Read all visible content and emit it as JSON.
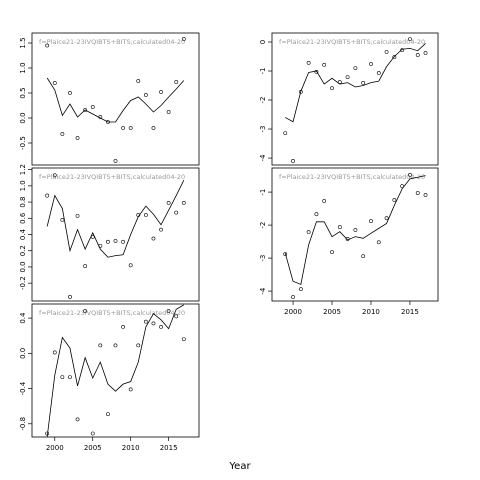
{
  "x_label": "Year",
  "chart_data": [
    {
      "type": "scatter",
      "title": "f=Plaice21-23IVQIBTS+BITS;calculated04-20",
      "x": [
        1999,
        2000,
        2001,
        2002,
        2003,
        2004,
        2005,
        2006,
        2007,
        2008,
        2009,
        2010,
        2011,
        2012,
        2013,
        2014,
        2015,
        2016,
        2017
      ],
      "xlim": [
        1997,
        2019
      ],
      "ylim": [
        -0.94,
        1.7
      ],
      "yticks": [
        -0.5,
        {
          "value": 0,
          "label": "0.0"
        },
        0.5,
        {
          "value": 1,
          "label": "1.0"
        },
        1.5
      ],
      "series": [
        {
          "style": "points",
          "color": "#000000",
          "values": [
            1.45,
            0.7,
            -0.32,
            0.5,
            -0.4,
            0.16,
            0.22,
            0.02,
            -0.08,
            -0.86,
            -0.2,
            -0.2,
            0.74,
            0.46,
            -0.2,
            0.52,
            0.12,
            0.72,
            1.58
          ]
        },
        {
          "style": "line",
          "color": "#000000",
          "values": [
            0.8,
            0.56,
            0.05,
            0.28,
            0.02,
            0.16,
            0.08,
            0.0,
            -0.08,
            -0.08,
            0.15,
            0.35,
            0.42,
            0.28,
            0.12,
            0.25,
            0.42,
            0.58,
            0.75
          ]
        }
      ]
    },
    {
      "type": "scatter",
      "title": "f=Plaice21-23IVQIBTS+BITS;calculated04-20",
      "x": [
        1999,
        2000,
        2001,
        2002,
        2003,
        2004,
        2005,
        2006,
        2007,
        2008,
        2009,
        2010,
        2011,
        2012,
        2013,
        2014,
        2015,
        2016,
        2017
      ],
      "xlim": [
        1997,
        2019
      ],
      "ylim": [
        -0.42,
        1.22
      ],
      "yticks": [
        -0.2,
        {
          "value": 0,
          "label": "0.0"
        },
        0.2,
        0.4,
        0.6,
        0.8,
        {
          "value": 1,
          "label": "1.0"
        },
        1.2
      ],
      "series": [
        {
          "style": "points",
          "color": "#000000",
          "values": [
            0.88,
            1.13,
            0.58,
            -0.37,
            0.63,
            0.01,
            0.37,
            0.26,
            0.31,
            0.32,
            0.31,
            0.02,
            0.64,
            0.64,
            0.35,
            0.46,
            0.79,
            0.67,
            0.79
          ]
        },
        {
          "style": "line",
          "color": "#000000",
          "values": [
            0.5,
            0.88,
            0.72,
            0.2,
            0.46,
            0.22,
            0.42,
            0.22,
            0.12,
            0.14,
            0.15,
            0.4,
            0.62,
            0.75,
            0.65,
            0.52,
            0.7,
            0.88,
            1.07
          ]
        }
      ]
    },
    {
      "type": "scatter",
      "title": "f=Plaice21-23IVQIBTS+BITS;calculated04-20",
      "x": [
        1999,
        2000,
        2001,
        2002,
        2003,
        2004,
        2005,
        2006,
        2007,
        2008,
        2009,
        2010,
        2011,
        2012,
        2013,
        2014,
        2015,
        2016,
        2017
      ],
      "xlim": [
        1997,
        2019
      ],
      "ylim": [
        -0.95,
        0.56
      ],
      "xticks": [
        2000,
        2005,
        2010,
        2015
      ],
      "yticks": [
        -0.8,
        -0.4,
        {
          "value": 0,
          "label": "0.0"
        },
        0.4
      ],
      "series": [
        {
          "style": "points",
          "color": "#000000",
          "values": [
            -0.91,
            0.01,
            -0.27,
            -0.27,
            -0.75,
            0.48,
            -0.91,
            0.09,
            -0.69,
            0.09,
            0.3,
            -0.41,
            0.09,
            0.36,
            0.34,
            0.3,
            0.48,
            0.42,
            0.16
          ]
        },
        {
          "style": "line",
          "color": "#000000",
          "values": [
            -0.95,
            -0.25,
            0.18,
            0.06,
            -0.37,
            -0.05,
            -0.28,
            -0.1,
            -0.35,
            -0.43,
            -0.35,
            -0.32,
            -0.1,
            0.3,
            0.45,
            0.38,
            0.28,
            0.5,
            0.55
          ]
        }
      ]
    },
    {
      "type": "scatter",
      "title": "f=Plaice21-23IVQIBTS+BITS;calculated04-20",
      "x": [
        1999,
        2000,
        2001,
        2002,
        2003,
        2004,
        2005,
        2006,
        2007,
        2008,
        2009,
        2010,
        2011,
        2012,
        2013,
        2014,
        2015,
        2016,
        2017
      ],
      "xlim": [
        1997.3,
        2018.6
      ],
      "ylim": [
        -4.24,
        0.31
      ],
      "yticks": [
        -4,
        -3,
        -2,
        -1,
        0
      ],
      "series": [
        {
          "style": "points",
          "color": "#000000",
          "values": [
            -3.14,
            -4.1,
            -1.72,
            -0.72,
            -1.03,
            -0.79,
            -1.59,
            -1.38,
            -1.21,
            -0.9,
            -1.41,
            -0.76,
            -1.07,
            -0.34,
            -0.52,
            -0.28,
            0.1,
            -0.45,
            -0.38
          ]
        },
        {
          "style": "line",
          "color": "#000000",
          "values": [
            -2.6,
            -2.75,
            -1.7,
            -1.05,
            -1.0,
            -1.45,
            -1.25,
            -1.45,
            -1.4,
            -1.55,
            -1.5,
            -1.4,
            -1.35,
            -0.85,
            -0.5,
            -0.25,
            -0.22,
            -0.3,
            -0.05
          ]
        }
      ]
    },
    {
      "type": "scatter",
      "title": "f=Plaice21-23IVQIBTS+BITS;calculated04-20",
      "x": [
        1999,
        2000,
        2001,
        2002,
        2003,
        2004,
        2005,
        2006,
        2007,
        2008,
        2009,
        2010,
        2011,
        2012,
        2013,
        2014,
        2015,
        2016,
        2017
      ],
      "xlim": [
        1997.3,
        2018.6
      ],
      "ylim": [
        -4.3,
        -0.27
      ],
      "xticks": [
        2000,
        2005,
        2010,
        2015
      ],
      "yticks": [
        -4,
        -3,
        -2,
        -1
      ],
      "series": [
        {
          "style": "points",
          "color": "#000000",
          "values": [
            -2.88,
            -4.18,
            -3.94,
            -2.21,
            -1.67,
            -1.27,
            -2.82,
            -2.06,
            -2.42,
            -2.15,
            -2.94,
            -1.88,
            -2.52,
            -1.79,
            -1.24,
            -0.82,
            -0.48,
            -1.03,
            -1.09
          ]
        },
        {
          "style": "line",
          "color": "#000000",
          "values": [
            -2.85,
            -3.7,
            -3.8,
            -2.6,
            -1.9,
            -1.9,
            -2.35,
            -2.2,
            -2.45,
            -2.35,
            -2.4,
            -2.25,
            -2.1,
            -1.95,
            -1.4,
            -0.9,
            -0.6,
            -0.55,
            -0.5
          ]
        }
      ]
    }
  ]
}
